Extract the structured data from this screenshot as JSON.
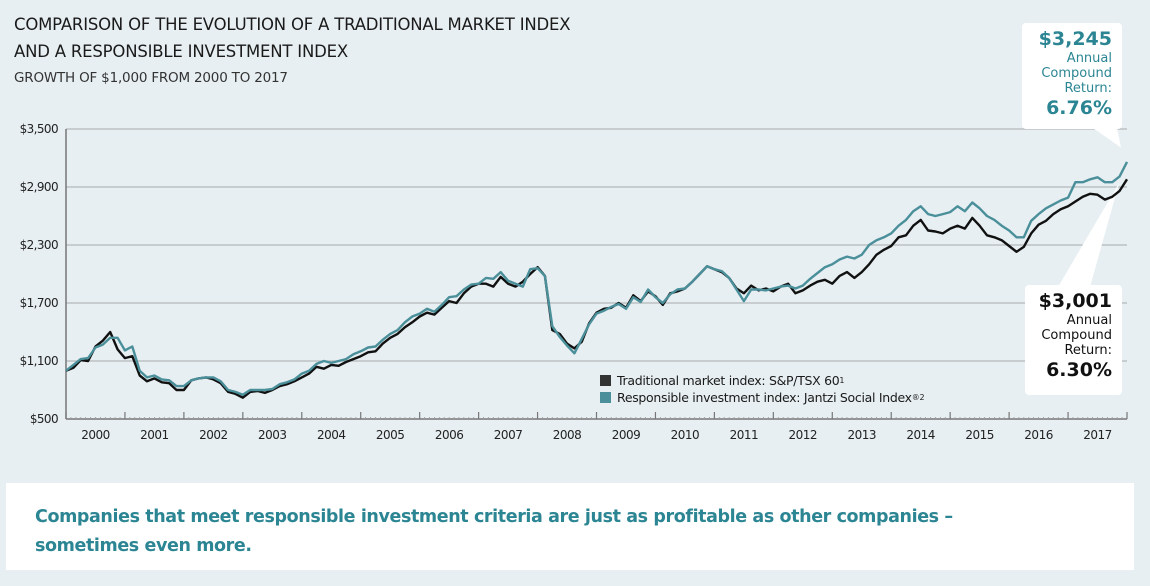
{
  "chart_data": {
    "type": "line",
    "title": "COMPARISON OF THE EVOLUTION OF A TRADITIONAL MARKET INDEX AND A RESPONSIBLE INVESTMENT INDEX",
    "subtitle": "GROWTH OF $1,000 FROM 2000 TO 2017",
    "xlabel": "",
    "ylabel": "",
    "ylim": [
      500,
      3500
    ],
    "xlim": [
      2000,
      2018
    ],
    "grid": true,
    "legend_position": "bottom-center",
    "y_ticks": [
      "$3,500",
      "$2,900",
      "$2,300",
      "$1,700",
      "$1,100",
      "$500"
    ],
    "y_tick_values": [
      3500,
      2900,
      2300,
      1700,
      1100,
      500
    ],
    "x_ticks": [
      "2000",
      "2001",
      "2002",
      "2003",
      "2004",
      "2005",
      "2006",
      "2007",
      "2008",
      "2009",
      "2010",
      "2011",
      "2012",
      "2013",
      "2014",
      "2015",
      "2016",
      "2017"
    ],
    "x": [
      2000.0,
      2000.125,
      2000.25,
      2000.375,
      2000.5,
      2000.625,
      2000.75,
      2000.875,
      2001.0,
      2001.125,
      2001.25,
      2001.375,
      2001.5,
      2001.625,
      2001.75,
      2001.875,
      2002.0,
      2002.125,
      2002.25,
      2002.375,
      2002.5,
      2002.625,
      2002.75,
      2002.875,
      2003.0,
      2003.125,
      2003.25,
      2003.375,
      2003.5,
      2003.625,
      2003.75,
      2003.875,
      2004.0,
      2004.125,
      2004.25,
      2004.375,
      2004.5,
      2004.625,
      2004.75,
      2004.875,
      2005.0,
      2005.125,
      2005.25,
      2005.375,
      2005.5,
      2005.625,
      2005.75,
      2005.875,
      2006.0,
      2006.125,
      2006.25,
      2006.375,
      2006.5,
      2006.625,
      2006.75,
      2006.875,
      2007.0,
      2007.125,
      2007.25,
      2007.375,
      2007.5,
      2007.625,
      2007.75,
      2007.875,
      2008.0,
      2008.125,
      2008.25,
      2008.375,
      2008.5,
      2008.625,
      2008.75,
      2008.875,
      2009.0,
      2009.125,
      2009.25,
      2009.375,
      2009.5,
      2009.625,
      2009.75,
      2009.875,
      2010.0,
      2010.125,
      2010.25,
      2010.375,
      2010.5,
      2010.625,
      2010.75,
      2010.875,
      2011.0,
      2011.125,
      2011.25,
      2011.375,
      2011.5,
      2011.625,
      2011.75,
      2011.875,
      2012.0,
      2012.125,
      2012.25,
      2012.375,
      2012.5,
      2012.625,
      2012.75,
      2012.875,
      2013.0,
      2013.125,
      2013.25,
      2013.375,
      2013.5,
      2013.625,
      2013.75,
      2013.875,
      2014.0,
      2014.125,
      2014.25,
      2014.375,
      2014.5,
      2014.625,
      2014.75,
      2014.875,
      2015.0,
      2015.125,
      2015.25,
      2015.375,
      2015.5,
      2015.625,
      2015.75,
      2015.875,
      2016.0,
      2016.125,
      2016.25,
      2016.375,
      2016.5,
      2016.625,
      2016.75,
      2016.875,
      2017.0,
      2017.125,
      2017.25,
      2017.375,
      2017.5,
      2017.625,
      2017.75,
      2017.875,
      2018.0
    ],
    "series": [
      {
        "name": "Traditional market index: S&P/TSX 60¹",
        "color": "#111111",
        "values": [
          1000,
          1030,
          1110,
          1100,
          1250,
          1310,
          1400,
          1220,
          1130,
          1150,
          950,
          890,
          920,
          880,
          870,
          800,
          800,
          900,
          920,
          930,
          910,
          870,
          780,
          760,
          720,
          780,
          790,
          770,
          800,
          840,
          860,
          890,
          930,
          970,
          1040,
          1020,
          1060,
          1050,
          1090,
          1120,
          1150,
          1190,
          1200,
          1280,
          1340,
          1380,
          1450,
          1500,
          1560,
          1600,
          1580,
          1650,
          1720,
          1700,
          1800,
          1870,
          1900,
          1900,
          1870,
          1970,
          1900,
          1870,
          1920,
          2000,
          2070,
          1980,
          1420,
          1380,
          1280,
          1230,
          1300,
          1490,
          1600,
          1640,
          1650,
          1700,
          1650,
          1780,
          1720,
          1820,
          1770,
          1680,
          1800,
          1820,
          1850,
          1920,
          2000,
          2080,
          2050,
          2020,
          1960,
          1850,
          1800,
          1880,
          1830,
          1850,
          1820,
          1870,
          1900,
          1800,
          1830,
          1880,
          1920,
          1940,
          1900,
          1980,
          2020,
          1960,
          2020,
          2100,
          2200,
          2250,
          2290,
          2380,
          2400,
          2500,
          2560,
          2450,
          2440,
          2420,
          2470,
          2500,
          2470,
          2580,
          2500,
          2400,
          2380,
          2350,
          2290,
          2230,
          2280,
          2420,
          2510,
          2550,
          2620,
          2670,
          2700,
          2750,
          2800,
          2830,
          2820,
          2770,
          2800,
          2860,
          2980,
          3001
        ]
      },
      {
        "name": "Responsible investment index: Jantzi Social Index®²",
        "color": "#4a8f9a",
        "values": [
          1000,
          1060,
          1120,
          1130,
          1240,
          1270,
          1340,
          1340,
          1210,
          1250,
          1000,
          930,
          950,
          910,
          900,
          840,
          840,
          900,
          920,
          930,
          930,
          890,
          800,
          780,
          750,
          800,
          800,
          800,
          810,
          860,
          880,
          910,
          970,
          1000,
          1070,
          1100,
          1080,
          1100,
          1120,
          1170,
          1200,
          1240,
          1250,
          1320,
          1380,
          1420,
          1500,
          1560,
          1590,
          1640,
          1610,
          1680,
          1760,
          1770,
          1840,
          1890,
          1900,
          1960,
          1950,
          2020,
          1930,
          1900,
          1870,
          2050,
          2060,
          1980,
          1460,
          1350,
          1260,
          1180,
          1330,
          1480,
          1590,
          1620,
          1660,
          1690,
          1640,
          1760,
          1710,
          1840,
          1760,
          1700,
          1790,
          1840,
          1850,
          1920,
          2000,
          2080,
          2050,
          2030,
          1960,
          1840,
          1720,
          1840,
          1840,
          1830,
          1850,
          1870,
          1880,
          1850,
          1880,
          1950,
          2010,
          2070,
          2100,
          2150,
          2180,
          2160,
          2200,
          2300,
          2350,
          2380,
          2420,
          2500,
          2560,
          2650,
          2700,
          2620,
          2600,
          2620,
          2640,
          2700,
          2650,
          2740,
          2680,
          2600,
          2560,
          2500,
          2450,
          2380,
          2380,
          2550,
          2620,
          2680,
          2720,
          2760,
          2790,
          2950,
          2950,
          2980,
          3000,
          2950,
          2950,
          3010,
          3160,
          3245
        ]
      }
    ],
    "annotations": [
      {
        "series": "Responsible investment index",
        "value": "$3,245",
        "label": "Annual Compound Return:",
        "rate": "6.76%"
      },
      {
        "series": "Traditional market index",
        "value": "$3,001",
        "label": "Annual Compound Return:",
        "rate": "6.30%"
      }
    ]
  },
  "header": {
    "title_line1": "COMPARISON OF THE EVOLUTION OF A TRADITIONAL MARKET INDEX",
    "title_line2": "AND A RESPONSIBLE INVESTMENT INDEX",
    "subtitle": "GROWTH OF $1,000 FROM 2000 TO 2017"
  },
  "legend": {
    "traditional": {
      "label": "Traditional market index: S&P/TSX 60",
      "sup": "1",
      "color": "#333333"
    },
    "responsible": {
      "label": "Responsible investment index: Jantzi Social Index",
      "sup": "®2",
      "color": "#4a8f9a"
    }
  },
  "callouts": {
    "responsible": {
      "value": "$3,245",
      "line1": "Annual",
      "line2": "Compound",
      "line3": "Return:",
      "rate": "6.76%",
      "color": "#2b8593"
    },
    "traditional": {
      "value": "$3,001",
      "line1": "Annual",
      "line2": "Compound",
      "line3": "Return:",
      "rate": "6.30%",
      "color": "#111111"
    }
  },
  "footer": {
    "text": "Companies that meet responsible investment criteria are just as profitable as other companies – sometimes even more."
  }
}
